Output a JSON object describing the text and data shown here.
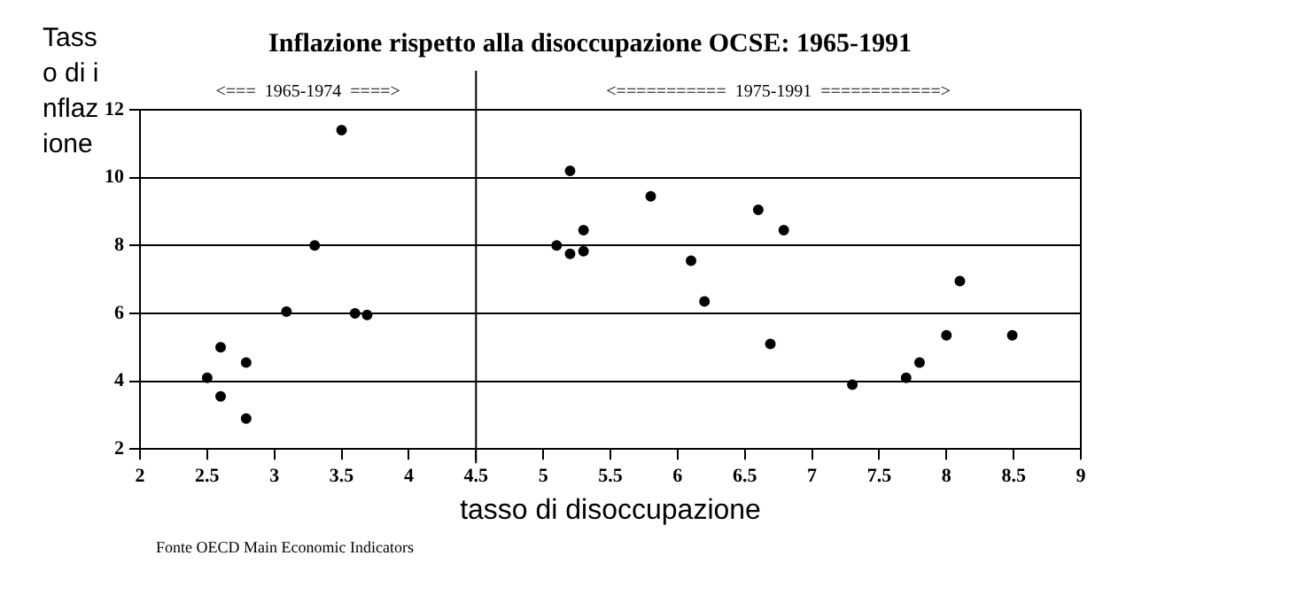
{
  "chart_data": {
    "type": "scatter",
    "title": "Inflazione rispetto alla disoccupazione OCSE: 1965-1991",
    "xlabel": "tasso di disoccupazione",
    "ylabel": "Tasso di inflazione",
    "annotations": [
      "<===  1965-1974  ====>",
      "<===========  1975-1991  ============>",
      "Fonte OECD Main Economic Indicators"
    ],
    "x": [
      3.5,
      3.3,
      3.09,
      3.6,
      3.69,
      2.6,
      2.79,
      2.5,
      2.6,
      2.79,
      5.2,
      5.8,
      6.6,
      6.79,
      5.3,
      5.1,
      5.2,
      5.3,
      6.1,
      6.2,
      6.69,
      8.1,
      8.0,
      8.49,
      7.8,
      7.7,
      7.3
    ],
    "series": [
      {
        "color": "#000000",
        "values": [
          11.4,
          8.0,
          6.05,
          6.0,
          5.95,
          5.0,
          4.55,
          4.1,
          3.55,
          2.9,
          10.2,
          9.45,
          9.05,
          8.45,
          8.45,
          8.0,
          7.75,
          7.83,
          7.55,
          6.35,
          5.1,
          6.95,
          5.35,
          5.35,
          4.55,
          4.1,
          3.9
        ]
      }
    ],
    "xlim": [
      2,
      9
    ],
    "xticks": [
      2,
      2.5,
      3,
      3.5,
      4,
      4.5,
      5,
      5.5,
      6,
      6.5,
      7,
      7.5,
      8,
      8.5,
      9
    ],
    "ylim": [
      2,
      12
    ],
    "yticks": [
      2,
      4,
      6,
      8,
      10,
      12
    ],
    "ref_lines": [
      {
        "axis": "x",
        "value": 4.5,
        "color": "#000000"
      }
    ],
    "grid": "y",
    "legend": false,
    "marker": "circle"
  }
}
